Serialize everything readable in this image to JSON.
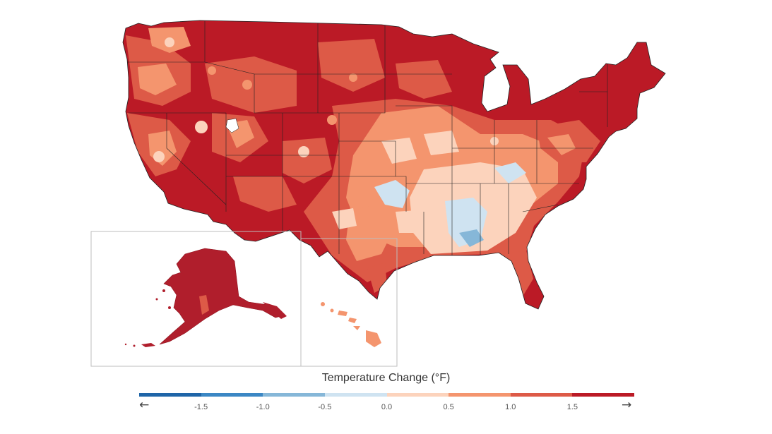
{
  "legend": {
    "title": "Temperature Change (°F)",
    "ticks": [
      "-1.5",
      "-1.0",
      "-0.5",
      "0.0",
      "0.5",
      "1.0",
      "1.5"
    ],
    "tick_values": [
      -1.5,
      -1.0,
      -0.5,
      0.0,
      0.5,
      1.0,
      1.5
    ],
    "range": [
      -2.0,
      2.0
    ],
    "left_arrow": "←",
    "right_arrow": "→",
    "colors": [
      "#1f65a8",
      "#3b87c4",
      "#86b7d8",
      "#cfe3f1",
      "#fcd3bc",
      "#f4956e",
      "#dd5a47",
      "#bb1a26"
    ]
  },
  "map": {
    "regions": [
      "contiguous-us",
      "alaska-inset",
      "hawaii-inset"
    ],
    "colors": {
      "strong_warming": "#bb1a26",
      "warming": "#dd5a47",
      "moderate_warming": "#f4956e",
      "slight_warming": "#fcd3bc",
      "slight_cooling": "#cfe3f1",
      "cooling": "#86b7d8",
      "alaska": "#b01e2c",
      "hawaii": "#f4956e",
      "state_border": "#222222",
      "inset_border": "#bdbdbd"
    }
  }
}
